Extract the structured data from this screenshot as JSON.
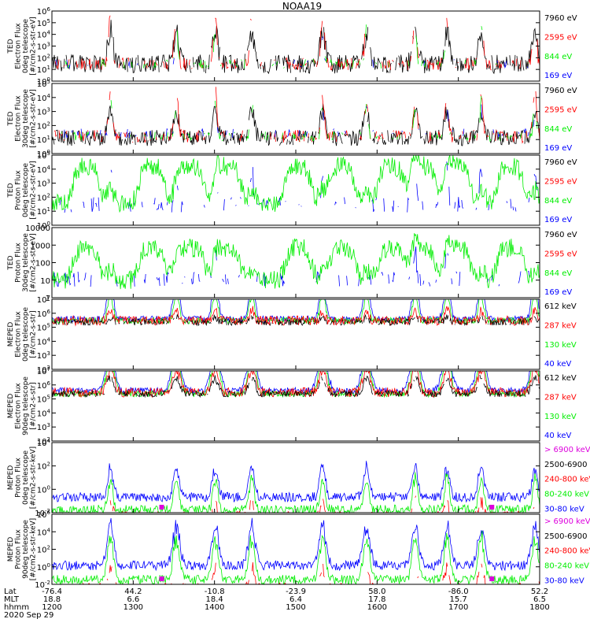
{
  "title": "NOAA19",
  "colors": {
    "black": "#000000",
    "red": "#ff0000",
    "green": "#00ee00",
    "blue": "#0000ff",
    "magenta": "#dd00dd"
  },
  "chart_data": [
    {
      "type": "line",
      "ylabel_lines": [
        "TED",
        "Electron Flux",
        "0deg telescope",
        "[#/cm2-s-str-eV]"
      ],
      "y_scale": "log",
      "ylim": [
        1,
        1000000
      ],
      "yticks": [
        "10^0",
        "10^1",
        "10^2",
        "10^3",
        "10^4",
        "10^5",
        "10^6"
      ],
      "legend": [
        {
          "name": "7960 eV",
          "color": "#000000"
        },
        {
          "name": "2595 eV",
          "color": "#ff0000"
        },
        {
          "name": "844 eV",
          "color": "#00ee00"
        },
        {
          "name": "169 eV",
          "color": "#0000ff"
        }
      ],
      "series": [
        {
          "name": "7960 eV",
          "color": "#000000",
          "base": 1.0,
          "noise": 0.6,
          "peak": 2.3,
          "width": 0.008,
          "coverage": 0.9
        },
        {
          "name": "2595 eV",
          "color": "#ff0000",
          "base": 1.0,
          "noise": 0.4,
          "peak": 3.6,
          "width": 0.005,
          "coverage": 0.6
        },
        {
          "name": "844 eV",
          "color": "#00ee00",
          "base": 1.0,
          "noise": 0.3,
          "peak": 2.8,
          "width": 0.004,
          "coverage": 0.4
        },
        {
          "name": "169 eV",
          "color": "#0000ff",
          "base": 1.0,
          "noise": 0.3,
          "peak": 1.8,
          "width": 0.003,
          "coverage": 0.2
        }
      ]
    },
    {
      "type": "line",
      "ylabel_lines": [
        "TED",
        "Electron Flux",
        "30deg telescope",
        "[#/cm2-s-str-eV]"
      ],
      "y_scale": "log",
      "ylim": [
        1,
        100000
      ],
      "yticks": [
        "10^0",
        "10^1",
        "10^2",
        "10^3",
        "10^4",
        "10^5"
      ],
      "legend": [
        {
          "name": "7960 eV",
          "color": "#000000"
        },
        {
          "name": "2595 eV",
          "color": "#ff0000"
        },
        {
          "name": "844 eV",
          "color": "#00ee00"
        },
        {
          "name": "169 eV",
          "color": "#0000ff"
        }
      ],
      "series": [
        {
          "name": "7960 eV",
          "color": "#000000",
          "base": 0.9,
          "noise": 0.5,
          "peak": 2.0,
          "width": 0.008,
          "coverage": 0.9
        },
        {
          "name": "2595 eV",
          "color": "#ff0000",
          "base": 1.0,
          "noise": 0.4,
          "peak": 3.1,
          "width": 0.005,
          "coverage": 0.6
        },
        {
          "name": "844 eV",
          "color": "#00ee00",
          "base": 1.0,
          "noise": 0.3,
          "peak": 2.6,
          "width": 0.004,
          "coverage": 0.4
        },
        {
          "name": "169 eV",
          "color": "#0000ff",
          "base": 1.2,
          "noise": 0.3,
          "peak": 1.7,
          "width": 0.003,
          "coverage": 0.3
        }
      ]
    },
    {
      "type": "line",
      "ylabel_lines": [
        "TED",
        "Proton Flux",
        "0deg telescope",
        "[#/cm2-s-str-eV]"
      ],
      "y_scale": "log",
      "ylim": [
        1,
        100000
      ],
      "yticks": [
        "10^0",
        "10^1",
        "10^2",
        "10^3",
        "10^4",
        "10^5"
      ],
      "legend": [
        {
          "name": "7960 eV",
          "color": "#000000"
        },
        {
          "name": "2595 eV",
          "color": "#ff0000"
        },
        {
          "name": "844 eV",
          "color": "#00ee00"
        },
        {
          "name": "169 eV",
          "color": "#0000ff"
        }
      ],
      "series": [
        {
          "name": "169 eV",
          "color": "#0000ff",
          "base": 1.2,
          "noise": 0.5,
          "peak": 2.8,
          "width": 0.004,
          "coverage": 0.4
        },
        {
          "name": "844 eV",
          "color": "#00ee00",
          "base": 1.3,
          "noise": 0.6,
          "peak": 1.0,
          "width": 0.01,
          "coverage": 1.0,
          "hump": 2.6
        }
      ]
    },
    {
      "type": "line",
      "ylabel_lines": [
        "TED",
        "Proton Flux",
        "30deg telescope",
        "[#/cm2-s-str-eV]"
      ],
      "y_scale": "log",
      "ylim": [
        1,
        10000
      ],
      "yticks": [
        "1",
        "10",
        "100",
        "1000",
        "10000"
      ],
      "legend": [
        {
          "name": "7960 eV",
          "color": "#000000"
        },
        {
          "name": "2595 eV",
          "color": "#ff0000"
        },
        {
          "name": "844 eV",
          "color": "#00ee00"
        },
        {
          "name": "169 eV",
          "color": "#0000ff"
        }
      ],
      "series": [
        {
          "name": "169 eV",
          "color": "#0000ff",
          "base": 1.1,
          "noise": 0.5,
          "peak": 2.2,
          "width": 0.004,
          "coverage": 0.4
        },
        {
          "name": "844 eV",
          "color": "#00ee00",
          "base": 1.0,
          "noise": 0.6,
          "peak": 0.8,
          "width": 0.01,
          "coverage": 1.0,
          "hump": 2.3
        }
      ]
    },
    {
      "type": "line",
      "ylabel_lines": [
        "MEPED",
        "Electron Flux",
        "0deg telescope",
        "[#/cm2-s-str]"
      ],
      "y_scale": "log",
      "ylim": [
        100,
        10000000
      ],
      "yticks": [
        "10^2",
        "10^3",
        "10^4",
        "10^5",
        "10^6",
        "10^7"
      ],
      "legend": [
        {
          "name": "612 keV",
          "color": "#000000"
        },
        {
          "name": "287 keV",
          "color": "#ff0000"
        },
        {
          "name": "130 keV",
          "color": "#00ee00"
        },
        {
          "name": "40 keV",
          "color": "#0000ff"
        }
      ],
      "series": [
        {
          "name": "40 keV",
          "color": "#0000ff",
          "base": 3.1,
          "noise": 0.2,
          "peak": 3.4,
          "width": 0.008,
          "coverage": 1.0
        },
        {
          "name": "130 keV",
          "color": "#00ee00",
          "base": 3.0,
          "noise": 0.2,
          "peak": 2.2,
          "width": 0.007,
          "coverage": 1.0
        },
        {
          "name": "287 keV",
          "color": "#ff0000",
          "base": 3.0,
          "noise": 0.3,
          "peak": 0.8,
          "width": 0.006,
          "coverage": 1.0
        },
        {
          "name": "612 keV",
          "color": "#000000",
          "base": 2.9,
          "noise": 0.2,
          "peak": 0.4,
          "width": 0.006,
          "coverage": 0.8
        }
      ]
    },
    {
      "type": "line",
      "ylabel_lines": [
        "MEPED",
        "Electron Flux",
        "90deg telescope",
        "[#/cm2-s-str]"
      ],
      "y_scale": "log",
      "ylim": [
        100,
        10000000
      ],
      "yticks": [
        "10^2",
        "10^3",
        "10^4",
        "10^5",
        "10^6",
        "10^7"
      ],
      "legend": [
        {
          "name": "612 keV",
          "color": "#000000"
        },
        {
          "name": "287 keV",
          "color": "#ff0000"
        },
        {
          "name": "130 keV",
          "color": "#00ee00"
        },
        {
          "name": "40 keV",
          "color": "#0000ff"
        }
      ],
      "series": [
        {
          "name": "40 keV",
          "color": "#0000ff",
          "base": 3.1,
          "noise": 0.2,
          "peak": 3.6,
          "width": 0.012,
          "coverage": 1.0
        },
        {
          "name": "130 keV",
          "color": "#00ee00",
          "base": 2.9,
          "noise": 0.2,
          "peak": 2.9,
          "width": 0.011,
          "coverage": 1.0
        },
        {
          "name": "287 keV",
          "color": "#ff0000",
          "base": 3.0,
          "noise": 0.3,
          "peak": 1.8,
          "width": 0.01,
          "coverage": 1.0
        },
        {
          "name": "612 keV",
          "color": "#000000",
          "base": 2.9,
          "noise": 0.2,
          "peak": 1.2,
          "width": 0.009,
          "coverage": 0.9
        }
      ]
    },
    {
      "type": "line",
      "ylabel_lines": [
        "MEPED",
        "Proton Flux",
        "0deg telescope",
        "[#/cm2-s-str-keV]"
      ],
      "y_scale": "log",
      "ylim": [
        0.01,
        10000
      ],
      "yticks": [
        "10^-2",
        "10^0",
        "10^2",
        "10^4"
      ],
      "legend": [
        {
          "name": "> 6900 keV",
          "color": "#dd00dd"
        },
        {
          "name": "2500-6900",
          "color": "#000000"
        },
        {
          "name": "240-800 keV",
          "color": "#ff0000"
        },
        {
          "name": "80-240 keV",
          "color": "#00ee00"
        },
        {
          "name": "30-80 keV",
          "color": "#0000ff"
        }
      ],
      "series": [
        {
          "name": "30-80 keV",
          "color": "#0000ff",
          "base": 0.9,
          "noise": 0.3,
          "peak": 2.2,
          "width": 0.008,
          "coverage": 1.0
        },
        {
          "name": "80-240 keV",
          "color": "#00ee00",
          "base": 0.1,
          "noise": 0.3,
          "peak": 2.3,
          "width": 0.007,
          "coverage": 1.0
        },
        {
          "name": "240-800 keV",
          "color": "#ff0000",
          "base": -0.4,
          "noise": 0.4,
          "peak": 1.2,
          "width": 0.006,
          "coverage": 0.6
        },
        {
          "name": "2500-6900",
          "color": "#000000",
          "base": -1.6,
          "noise": 0.3,
          "peak": 0.5,
          "width": 0.004,
          "coverage": 0.3
        }
      ]
    },
    {
      "type": "line",
      "ylabel_lines": [
        "MEPED",
        "Proton Flux",
        "90deg telescope",
        "[#/cm2-s-str-keV]"
      ],
      "y_scale": "log",
      "ylim": [
        0.01,
        1000000
      ],
      "yticks": [
        "10^-2",
        "10^0",
        "10^2",
        "10^4",
        "10^6"
      ],
      "legend": [
        {
          "name": "> 6900 keV",
          "color": "#dd00dd"
        },
        {
          "name": "2500-6900",
          "color": "#000000"
        },
        {
          "name": "240-800 keV",
          "color": "#ff0000"
        },
        {
          "name": "80-240 keV",
          "color": "#00ee00"
        },
        {
          "name": "30-80 keV",
          "color": "#0000ff"
        }
      ],
      "series": [
        {
          "name": "30-80 keV",
          "color": "#0000ff",
          "base": 1.1,
          "noise": 0.3,
          "peak": 2.9,
          "width": 0.01,
          "coverage": 1.0
        },
        {
          "name": "80-240 keV",
          "color": "#00ee00",
          "base": 0.2,
          "noise": 0.3,
          "peak": 3.0,
          "width": 0.009,
          "coverage": 1.0
        },
        {
          "name": "240-800 keV",
          "color": "#ff0000",
          "base": -0.4,
          "noise": 0.4,
          "peak": 1.6,
          "width": 0.007,
          "coverage": 0.6
        },
        {
          "name": "2500-6900",
          "color": "#000000",
          "base": -1.5,
          "noise": 0.3,
          "peak": 0.6,
          "width": 0.004,
          "coverage": 0.3
        }
      ]
    }
  ],
  "passes": [
    0.12,
    0.255,
    0.335,
    0.41,
    0.555,
    0.645,
    0.745,
    0.81,
    0.88,
    0.99
  ],
  "flux_markers": [
    0.225,
    0.902
  ],
  "xaxis": {
    "rows": [
      "Lat",
      "MLT",
      "hhmm"
    ],
    "ticks": [
      {
        "lat": "-76.4",
        "mlt": "18.8",
        "hhmm": "1200"
      },
      {
        "lat": "44.2",
        "mlt": "6.6",
        "hhmm": "1300"
      },
      {
        "lat": "-10.8",
        "mlt": "18.4",
        "hhmm": "1400"
      },
      {
        "lat": "-23.9",
        "mlt": "6.4",
        "hhmm": "1500"
      },
      {
        "lat": "58.0",
        "mlt": "17.8",
        "hhmm": "1600"
      },
      {
        "lat": "-86.0",
        "mlt": "15.7",
        "hhmm": "1700"
      },
      {
        "lat": "52.2",
        "mlt": "6.5",
        "hhmm": "1800"
      }
    ],
    "date": "2020 Sep 29"
  }
}
